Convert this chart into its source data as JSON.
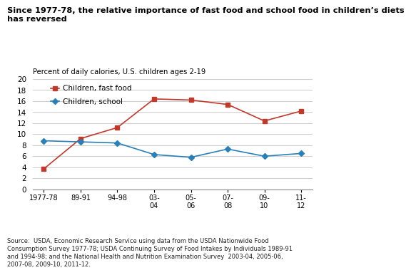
{
  "title": "Since 1977-78, the relative importance of fast food and school food in children’s diets\nhas reversed",
  "ylabel": "Percent of daily calories, U.S. children ages 2-19",
  "x_labels": [
    "1977-78",
    "89-91",
    "94-98",
    "03-\n04",
    "05-\n06",
    "07-\n08",
    "09-\n10",
    "11-\n12"
  ],
  "x_positions": [
    0,
    1,
    2,
    3,
    4,
    5,
    6,
    7
  ],
  "fast_food": [
    3.7,
    9.2,
    11.2,
    16.4,
    16.2,
    15.4,
    12.4,
    14.2
  ],
  "school_food": [
    8.8,
    8.6,
    8.4,
    6.3,
    5.8,
    7.3,
    6.0,
    6.5
  ],
  "fast_food_color": "#c0392b",
  "school_food_color": "#2980b9",
  "fast_food_label": "Children, fast food",
  "school_food_label": "Children, school",
  "ylim": [
    0,
    20
  ],
  "yticks": [
    0,
    2,
    4,
    6,
    8,
    10,
    12,
    14,
    16,
    18,
    20
  ],
  "source_text": "Source:  USDA, Economic Research Service using data from the USDA Nationwide Food\nConsumption Survey 1977-78; USDA Continuing Survey of Food Intakes by Individuals 1989-91\nand 1994-98; and the National Health and Nutrition Examination Survey  2003-04, 2005-06,\n2007-08, 2009-10, 2011-12.",
  "background_color": "#ffffff",
  "grid_color": "#d0d0d0"
}
